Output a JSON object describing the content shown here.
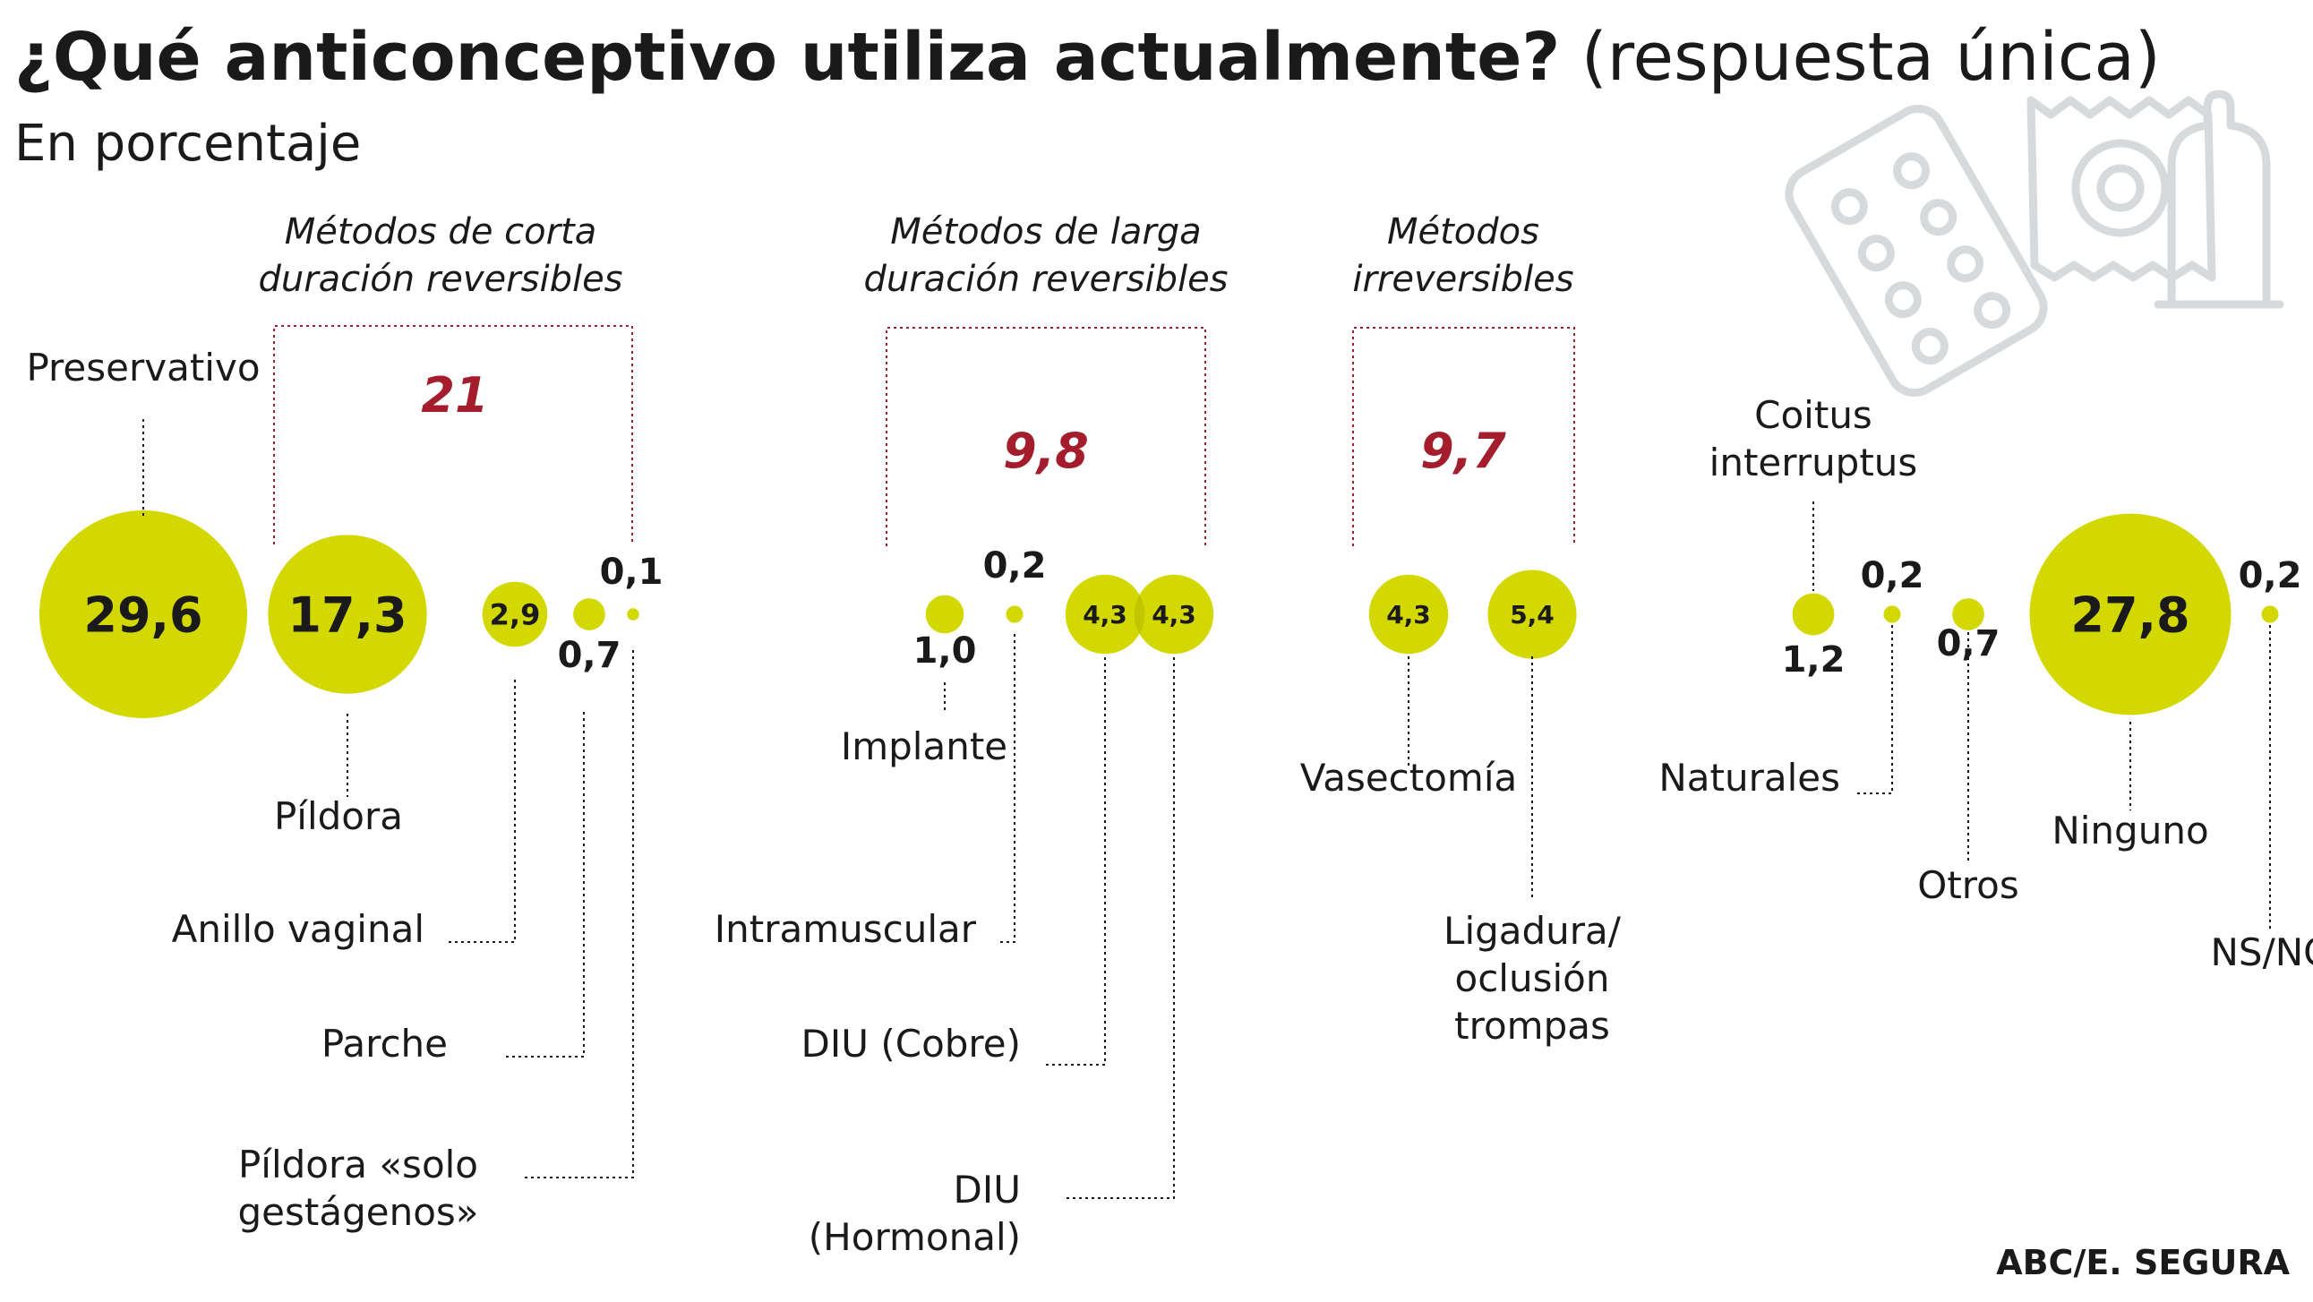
{
  "title": "¿Qué anticonceptivo utiliza actualmente?",
  "title_note": "(respuesta única)",
  "subtitle": "En porcentaje",
  "source": "ABC/E. SEGURA",
  "colors": {
    "bubble": "#d3d800",
    "accent": "#a31d2c",
    "text": "#1a1a1a",
    "decoration": "#d7dadd"
  },
  "decoration_icons": [
    "pill-blister-icon",
    "condom-wrapper-icon",
    "condom-icon"
  ],
  "chart_data": {
    "type": "bubble",
    "unit": "%",
    "groups": [
      {
        "id": "corta",
        "label": [
          "Métodos de corta",
          "duración reversibles"
        ],
        "total": "21"
      },
      {
        "id": "larga",
        "label": [
          "Métodos de larga",
          "duración reversibles"
        ],
        "total": "9,8"
      },
      {
        "id": "irrev",
        "label": [
          "Métodos",
          "irreversibles"
        ],
        "total": "9,7"
      }
    ],
    "items": [
      {
        "label": [
          "Preservativo"
        ],
        "value": 29.6,
        "display": "29,6"
      },
      {
        "label": [
          "Píldora"
        ],
        "value": 17.3,
        "display": "17,3",
        "group": "corta"
      },
      {
        "label": [
          "Anillo vaginal"
        ],
        "value": 2.9,
        "display": "2,9",
        "group": "corta"
      },
      {
        "label": [
          "Parche"
        ],
        "value": 0.7,
        "display": "0,7",
        "group": "corta"
      },
      {
        "label": [
          "Píldora «solo",
          "gestágenos»"
        ],
        "value": 0.1,
        "display": "0,1",
        "group": "corta"
      },
      {
        "label": [
          "Implante"
        ],
        "value": 1.0,
        "display": "1,0",
        "group": "larga"
      },
      {
        "label": [
          "Intramuscular"
        ],
        "value": 0.2,
        "display": "0,2",
        "group": "larga"
      },
      {
        "label": [
          "DIU (Cobre)"
        ],
        "value": 4.3,
        "display": "4,3",
        "group": "larga"
      },
      {
        "label": [
          "DIU",
          "(Hormonal)"
        ],
        "value": 4.3,
        "display": "4,3",
        "group": "larga"
      },
      {
        "label": [
          "Vasectomía"
        ],
        "value": 4.3,
        "display": "4,3",
        "group": "irrev"
      },
      {
        "label": [
          "Ligadura/",
          "oclusión",
          "trompas"
        ],
        "value": 5.4,
        "display": "5,4",
        "group": "irrev"
      },
      {
        "label": [
          "Coitus",
          "interruptus"
        ],
        "value": 1.2,
        "display": "1,2"
      },
      {
        "label": [
          "Naturales"
        ],
        "value": 0.2,
        "display": "0,2"
      },
      {
        "label": [
          "Otros"
        ],
        "value": 0.7,
        "display": "0,7"
      },
      {
        "label": [
          "Ninguno"
        ],
        "value": 27.8,
        "display": "27,8"
      },
      {
        "label": [
          "NS/NC"
        ],
        "value": 0.2,
        "display": "0,2"
      }
    ]
  }
}
